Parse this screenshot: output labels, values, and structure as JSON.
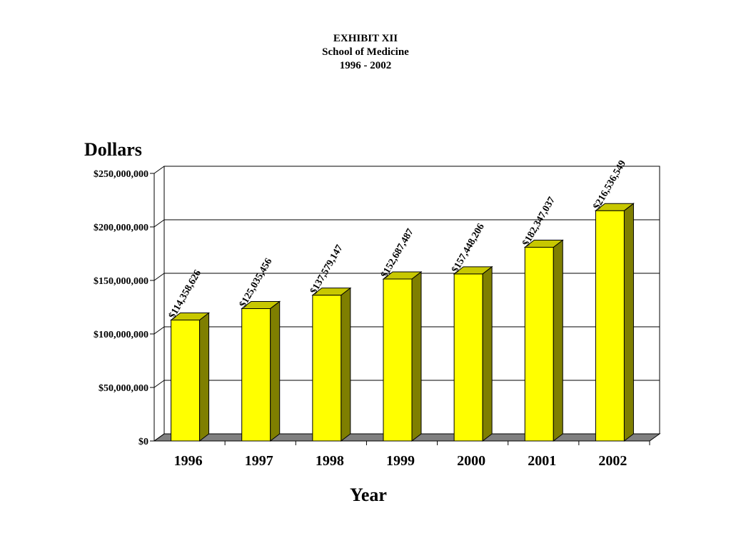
{
  "chart_data": {
    "type": "bar",
    "title": "EXHIBIT XII",
    "subtitle": "School of Medicine",
    "period": "1996 - 2002",
    "ylabel": "Dollars",
    "xlabel": "Year",
    "categories": [
      "1996",
      "1997",
      "1998",
      "1999",
      "2000",
      "2001",
      "2002"
    ],
    "values": [
      114358626,
      125035456,
      137579147,
      152687487,
      157448206,
      182347037,
      216536549
    ],
    "data_labels": [
      "$114,358,626",
      "$125,035,456",
      "$137,579,147",
      "$152,687,487",
      "$157,448,206",
      "$182,347,037",
      "$216,536,549"
    ],
    "ylim": [
      0,
      250000000
    ],
    "yticks": [
      0,
      50000000,
      100000000,
      150000000,
      200000000,
      250000000
    ],
    "ytick_labels": [
      "$0",
      "$50,000,000",
      "$100,000,000",
      "$150,000,000",
      "$200,000,000",
      "$250,000,000"
    ],
    "grid": true,
    "legend": "none",
    "colors": {
      "bar_front": "#ffff00",
      "bar_side": "#7f7f00",
      "bar_top": "#c8c800",
      "floor": "#808080"
    }
  }
}
